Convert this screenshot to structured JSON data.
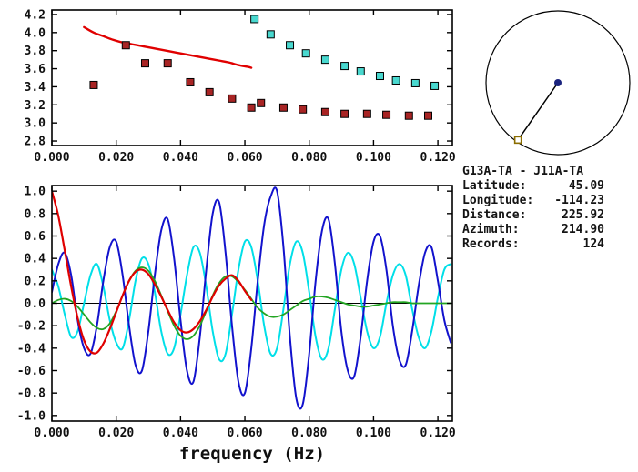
{
  "window": {
    "background": "#ffffff"
  },
  "info": {
    "title": "G13A-TA - J11A-TA",
    "rows": [
      {
        "label": "Latitude:",
        "value": "45.09"
      },
      {
        "label": "Longitude:",
        "value": "-114.23"
      },
      {
        "label": "Distance:",
        "value": "225.92"
      },
      {
        "label": "Azimuth:",
        "value": "214.90"
      },
      {
        "label": "Records:",
        "value": "124"
      }
    ]
  },
  "azimuth_diagram": {
    "azimuth_deg": 214.9,
    "circle_color": "#000000",
    "line_color": "#000000",
    "center_dot_color": "#1a237e",
    "end_marker_color": "#8a6d00"
  },
  "chart_data": [
    {
      "id": "dispersion",
      "type": "line",
      "title": "",
      "xlabel": "",
      "ylabel": "",
      "xlim": [
        0,
        0.1245
      ],
      "ylim": [
        2.75,
        4.25
      ],
      "grid": false,
      "xticks": [
        0,
        0.02,
        0.04,
        0.06,
        0.08,
        0.1,
        0.12
      ],
      "xtick_labels": [
        "0.000",
        "0.020",
        "0.040",
        "0.060",
        "0.080",
        "0.100",
        "0.120"
      ],
      "yticks": [
        2.8,
        3.0,
        3.2,
        3.4,
        3.6,
        3.8,
        4.0,
        4.2
      ],
      "ytick_labels": [
        "2.8",
        "3.0",
        "3.2",
        "3.4",
        "3.6",
        "3.8",
        "4.0",
        "4.2"
      ],
      "series": [
        {
          "name": "reference-dispersion-curve",
          "type": "line",
          "color": "#e00000",
          "width": 2.4,
          "x": [
            0.01,
            0.013,
            0.016,
            0.019,
            0.022,
            0.025,
            0.028,
            0.031,
            0.034,
            0.037,
            0.04,
            0.043,
            0.046,
            0.049,
            0.052,
            0.055,
            0.058,
            0.061,
            0.062
          ],
          "y": [
            4.06,
            4.0,
            3.96,
            3.92,
            3.89,
            3.87,
            3.85,
            3.83,
            3.81,
            3.79,
            3.77,
            3.75,
            3.73,
            3.71,
            3.69,
            3.67,
            3.64,
            3.62,
            3.61
          ]
        },
        {
          "name": "velocity-points-dark-red",
          "type": "scatter",
          "marker": "square",
          "color": "#a82424",
          "x": [
            0.013,
            0.023,
            0.029,
            0.036,
            0.043,
            0.049,
            0.056,
            0.062,
            0.065,
            0.072,
            0.078,
            0.085,
            0.091,
            0.098,
            0.104,
            0.111,
            0.117
          ],
          "y": [
            3.42,
            3.86,
            3.66,
            3.66,
            3.45,
            3.34,
            3.27,
            3.17,
            3.22,
            3.17,
            3.15,
            3.12,
            3.1,
            3.1,
            3.09,
            3.08,
            3.08
          ]
        },
        {
          "name": "velocity-points-cyan",
          "type": "scatter",
          "marker": "square",
          "color": "#49d8cf",
          "x": [
            0.063,
            0.068,
            0.074,
            0.079,
            0.085,
            0.091,
            0.096,
            0.102,
            0.107,
            0.113,
            0.119
          ],
          "y": [
            4.15,
            3.98,
            3.86,
            3.77,
            3.7,
            3.63,
            3.57,
            3.52,
            3.47,
            3.44,
            3.41
          ]
        }
      ]
    },
    {
      "id": "waveforms",
      "type": "line",
      "title": "",
      "xlabel": "frequency (Hz)",
      "ylabel": "",
      "xlim": [
        0,
        0.1245
      ],
      "ylim": [
        -1.05,
        1.05
      ],
      "zero_line": true,
      "grid": false,
      "xticks": [
        0,
        0.02,
        0.04,
        0.06,
        0.08,
        0.1,
        0.12
      ],
      "xtick_labels": [
        "0.000",
        "0.020",
        "0.040",
        "0.060",
        "0.080",
        "0.100",
        "0.120"
      ],
      "yticks": [
        -1.0,
        -0.8,
        -0.6,
        -0.4,
        -0.2,
        0.0,
        0.2,
        0.4,
        0.6,
        0.8,
        1.0
      ],
      "ytick_labels": [
        "-1.0",
        "-0.8",
        "-0.6",
        "-0.4",
        "-0.2",
        "0.0",
        "0.2",
        "0.4",
        "0.6",
        "0.8",
        "1.0"
      ],
      "series": [
        {
          "name": "waveform-cyan",
          "type": "line",
          "color": "#00dfe8",
          "width": 2,
          "x_start": 0,
          "x_step": 0.002,
          "values": [
            0.3,
            0.15,
            -0.1,
            -0.3,
            -0.25,
            0.0,
            0.25,
            0.35,
            0.15,
            -0.15,
            -0.35,
            -0.4,
            -0.15,
            0.2,
            0.4,
            0.35,
            0.1,
            -0.25,
            -0.45,
            -0.4,
            -0.1,
            0.25,
            0.5,
            0.45,
            0.15,
            -0.25,
            -0.5,
            -0.45,
            -0.1,
            0.3,
            0.55,
            0.5,
            0.2,
            -0.2,
            -0.45,
            -0.4,
            -0.05,
            0.35,
            0.55,
            0.45,
            0.1,
            -0.3,
            -0.5,
            -0.4,
            -0.05,
            0.3,
            0.45,
            0.35,
            0.05,
            -0.25,
            -0.4,
            -0.3,
            0.0,
            0.25,
            0.35,
            0.25,
            -0.05,
            -0.3,
            -0.4,
            -0.25,
            0.05,
            0.3,
            0.35
          ]
        },
        {
          "name": "waveform-blue",
          "type": "line",
          "color": "#1212cd",
          "width": 2,
          "x_start": 0,
          "x_step": 0.002,
          "values": [
            0.1,
            0.35,
            0.45,
            0.25,
            -0.15,
            -0.4,
            -0.45,
            -0.2,
            0.2,
            0.5,
            0.55,
            0.25,
            -0.2,
            -0.55,
            -0.6,
            -0.25,
            0.25,
            0.65,
            0.75,
            0.4,
            -0.15,
            -0.6,
            -0.7,
            -0.3,
            0.3,
            0.8,
            0.9,
            0.45,
            -0.2,
            -0.7,
            -0.8,
            -0.4,
            0.2,
            0.7,
            0.95,
            1.0,
            0.5,
            -0.3,
            -0.85,
            -0.9,
            -0.45,
            0.2,
            0.65,
            0.75,
            0.35,
            -0.25,
            -0.6,
            -0.65,
            -0.3,
            0.2,
            0.55,
            0.6,
            0.3,
            -0.2,
            -0.5,
            -0.55,
            -0.25,
            0.15,
            0.45,
            0.5,
            0.2,
            -0.15,
            -0.35
          ]
        },
        {
          "name": "waveform-green",
          "type": "line",
          "color": "#23a523",
          "width": 1.8,
          "x_start": 0,
          "x_step": 0.002,
          "values": [
            0.0,
            0.03,
            0.04,
            0.02,
            -0.03,
            -0.1,
            -0.17,
            -0.22,
            -0.23,
            -0.18,
            -0.07,
            0.07,
            0.2,
            0.29,
            0.32,
            0.29,
            0.2,
            0.07,
            -0.07,
            -0.2,
            -0.29,
            -0.32,
            -0.29,
            -0.2,
            -0.07,
            0.07,
            0.18,
            0.24,
            0.24,
            0.19,
            0.12,
            0.04,
            -0.04,
            -0.09,
            -0.12,
            -0.12,
            -0.1,
            -0.06,
            -0.02,
            0.02,
            0.04,
            0.06,
            0.06,
            0.05,
            0.03,
            0.01,
            -0.01,
            -0.02,
            -0.03,
            -0.03,
            -0.02,
            -0.01,
            0.0,
            0.01,
            0.01,
            0.01,
            0.0,
            0.0,
            0.0,
            0.0,
            0.0,
            0.0,
            0.0
          ]
        },
        {
          "name": "waveform-red",
          "type": "line",
          "color": "#e00000",
          "width": 2.2,
          "x_start": 0,
          "x_step": 0.002,
          "values": [
            1.0,
            0.78,
            0.47,
            0.15,
            -0.13,
            -0.33,
            -0.43,
            -0.44,
            -0.36,
            -0.23,
            -0.08,
            0.07,
            0.2,
            0.28,
            0.3,
            0.26,
            0.17,
            0.06,
            -0.06,
            -0.17,
            -0.24,
            -0.26,
            -0.23,
            -0.16,
            -0.06,
            0.06,
            0.16,
            0.22,
            0.25,
            0.2,
            0.11,
            0.03
          ]
        }
      ]
    }
  ]
}
